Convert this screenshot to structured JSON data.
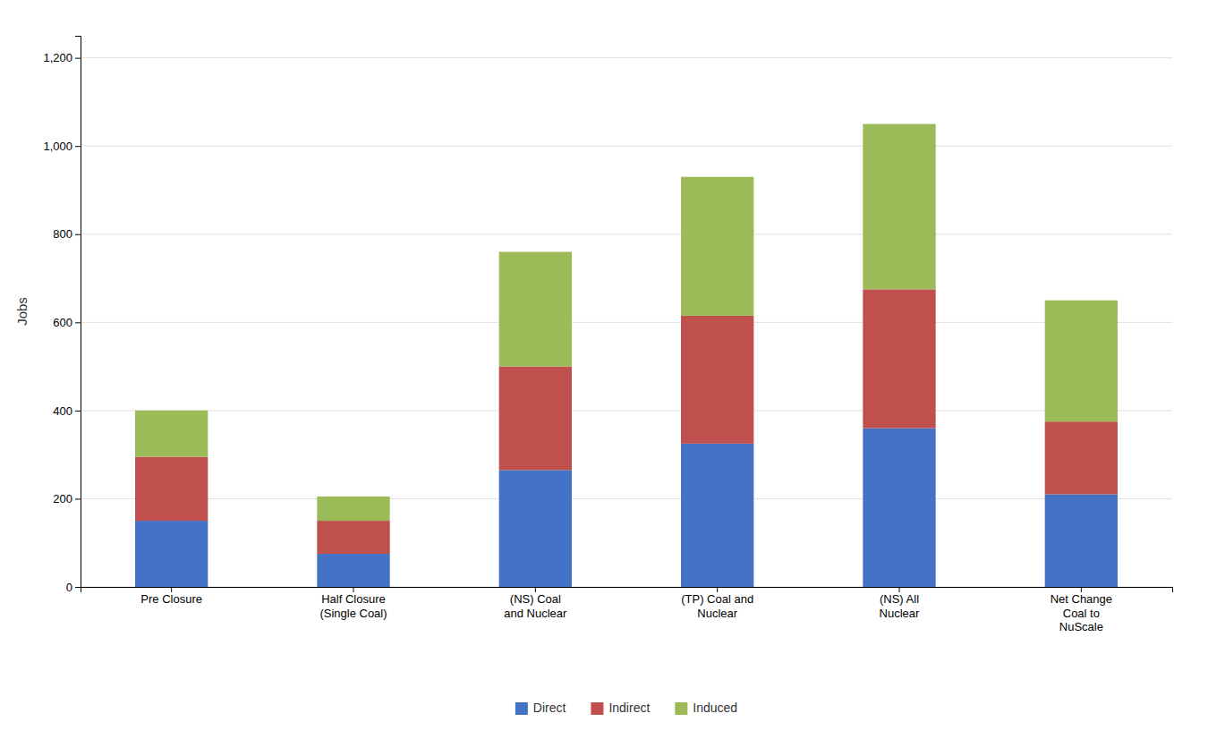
{
  "chart_data": {
    "type": "bar",
    "stacked": true,
    "y_label": "Jobs",
    "categories": [
      "Pre Closure",
      "Half Closure\n(Single Coal)",
      "(NS) Coal\nand Nuclear",
      "(TP) Coal and\nNuclear",
      "(NS) All\nNuclear",
      "Net Change\nCoal to\nNuScale"
    ],
    "series": [
      {
        "name": "Direct",
        "color": "#4472C4",
        "values": [
          150,
          75,
          265,
          325,
          360,
          210
        ]
      },
      {
        "name": "Indirect",
        "color": "#C0504D",
        "values": [
          145,
          75,
          235,
          290,
          315,
          165
        ]
      },
      {
        "name": "Induced",
        "color": "#9BBB59",
        "values": [
          105,
          55,
          260,
          315,
          375,
          275
        ]
      }
    ],
    "ylim": [
      0,
      1250
    ],
    "yticks": [
      0,
      200,
      400,
      600,
      800,
      {
        "value": 1000,
        "label": "1,000"
      },
      {
        "value": 1200,
        "label": "1,200"
      }
    ],
    "grid": true,
    "legend": "bottom"
  }
}
